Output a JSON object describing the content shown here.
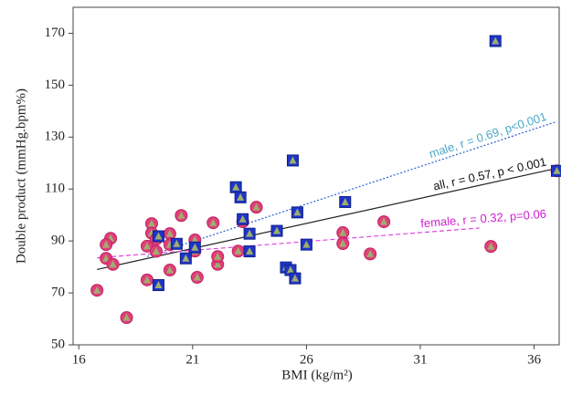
{
  "chart_data": {
    "type": "scatter",
    "x_label": "BMI (kg/m²)",
    "y_label": "Double product  (mmHg.bpm%)",
    "xlim": [
      15.75,
      37.1
    ],
    "ylim": [
      50,
      180
    ],
    "xticks": [
      16,
      21,
      26,
      31,
      36
    ],
    "yticks": [
      50,
      70,
      90,
      110,
      130,
      150,
      170
    ],
    "series": [
      {
        "marker": "circle",
        "color": "#e0407a",
        "inner_color": "#9fae6e",
        "x": [
          16.8,
          17.4,
          17.2,
          17.2,
          17.5,
          18.1,
          19.0,
          19.0,
          19.2,
          19.2,
          19.4,
          19.4,
          20.0,
          20.0,
          20.0,
          20.5,
          21.1,
          21.1,
          21.2,
          21.9,
          22.1,
          22.1,
          23.0,
          23.2,
          23.8,
          27.6,
          27.6,
          28.8,
          29.4,
          34.1,
          37.0
        ],
        "values": [
          71,
          91,
          88.6,
          83.3,
          81,
          60.5,
          75,
          88,
          96.7,
          93,
          90.7,
          86,
          92.8,
          88.6,
          78.8,
          99.8,
          90.4,
          86.1,
          76,
          97,
          81,
          84,
          86.1,
          97.4,
          103,
          93.2,
          89,
          85,
          97.4,
          87.9,
          117
        ]
      },
      {
        "marker": "square",
        "color": "#1f35c8",
        "inner_color": "#9fae6e",
        "x": [
          19.5,
          19.5,
          20.3,
          20.7,
          21.1,
          22.9,
          23.1,
          23.2,
          23.5,
          23.5,
          24.7,
          25.1,
          25.3,
          25.5,
          26.0,
          25.4,
          25.6,
          27.7,
          34.3,
          37.0
        ],
        "values": [
          91.8,
          73,
          88.9,
          83.3,
          87.5,
          110.7,
          106.8,
          98.4,
          92.8,
          86,
          93.9,
          79.8,
          78.8,
          75.6,
          88.6,
          121,
          101,
          105,
          167,
          117
        ]
      }
    ],
    "trend_lines": [
      {
        "label": "male, r = 0.69, p<0.001",
        "color": "#2b5fd9",
        "label_color": "#4aa8c8",
        "dash": "dotted",
        "x": [
          19.0,
          37.0
        ],
        "y": [
          84,
          136
        ]
      },
      {
        "label": "all,  r = 0.57, p < 0.001",
        "color": "#222222",
        "label_color": "#111111",
        "dash": "solid",
        "x": [
          16.8,
          37.0
        ],
        "y": [
          79,
          118
        ]
      },
      {
        "label": "female, r = 0.32, p=0.06",
        "color": "#e040e0",
        "label_color": "#d020d0",
        "dash": "dashed",
        "x": [
          16.8,
          33.6
        ],
        "y": [
          83.5,
          95
        ]
      }
    ]
  }
}
